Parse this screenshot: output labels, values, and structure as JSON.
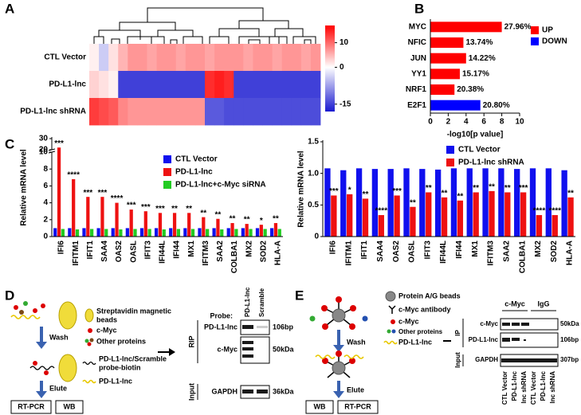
{
  "panel_labels": [
    "A",
    "B",
    "C",
    "D",
    "E"
  ],
  "chart_data": [
    {
      "type": "heatmap",
      "rows": [
        "CTL Vector",
        "PD-L1-lnc",
        "PD-L1-lnc shRNA"
      ],
      "values": [
        [
          1,
          -4,
          2,
          5,
          7,
          7,
          6,
          7,
          7,
          6,
          7,
          7,
          6,
          7,
          7,
          7,
          6,
          7,
          7,
          6,
          7,
          7,
          6,
          7
        ],
        [
          3,
          2,
          1,
          -15,
          -15,
          -15,
          -15,
          -15,
          -15,
          -15,
          -15,
          -15,
          14,
          15,
          14,
          -15,
          -15,
          -15,
          -15,
          -15,
          -15,
          -15,
          -15,
          -15
        ],
        [
          13,
          12,
          11,
          8,
          7,
          7,
          7,
          7,
          7,
          7,
          7,
          7,
          -13,
          -13,
          -14,
          -14,
          -14,
          -14,
          -14,
          -14,
          -14,
          -14,
          -14,
          -14
        ]
      ],
      "zlim": [
        -18,
        17
      ],
      "zticks": [
        10,
        0,
        -15
      ],
      "colors": [
        "#1a1ad0",
        "#ffffff",
        "#ff0000"
      ]
    },
    {
      "type": "bar",
      "orientation": "horizontal",
      "categories": [
        "MYC",
        "NFIC",
        "JUN",
        "YY1",
        "NRF1",
        "E2F1"
      ],
      "series": [
        {
          "name": "UP",
          "color": "#ff0000",
          "values": [
            8.0,
            3.7,
            4.0,
            3.3,
            2.7,
            null
          ]
        },
        {
          "name": "DOWN",
          "color": "#0000ff",
          "values": [
            null,
            null,
            null,
            null,
            null,
            5.6
          ]
        }
      ],
      "percent_labels": [
        "27.96%",
        "13.74%",
        "14.22%",
        "15.17%",
        "20.38%",
        "20.80%"
      ],
      "xlim": [
        0,
        10
      ],
      "xticks": [
        0,
        2,
        4,
        6,
        8,
        10
      ],
      "x_label": "-log10[p value]"
    },
    {
      "type": "bar",
      "orientation": "vertical",
      "categories": [
        "IFI6",
        "IFITM1",
        "IFIT1",
        "SAA4",
        "OAS2",
        "OASL",
        "IFIT3",
        "IFI44L",
        "IFI44",
        "MX1",
        "IFITM3",
        "SAA2",
        "COLBA1",
        "MX2",
        "SOD2",
        "HLA-A"
      ],
      "series": [
        {
          "name": "CTL Vector",
          "color": "#1010ee",
          "values": [
            1,
            1,
            1,
            1,
            1,
            1,
            1,
            1,
            1,
            1,
            1,
            1,
            1,
            1,
            1,
            1
          ]
        },
        {
          "name": "PD-L1-lnc",
          "color": "#ee1111",
          "values": [
            22,
            6.8,
            4.7,
            4.7,
            4.0,
            3.2,
            3.0,
            2.8,
            2.8,
            2.8,
            2.3,
            2.1,
            1.6,
            1.5,
            1.4,
            1.6
          ],
          "significance": [
            "***",
            "****",
            "***",
            "***",
            "****",
            "***",
            "***",
            "***",
            "**",
            "**",
            "**",
            "**",
            "**",
            "**",
            "*",
            "**"
          ]
        },
        {
          "name": "PD-L1-lnc+c-Myc siRNA",
          "color": "#22cc22",
          "values": [
            0.9,
            0.85,
            0.9,
            0.9,
            0.85,
            0.9,
            0.9,
            0.85,
            0.9,
            0.9,
            0.9,
            0.85,
            0.9,
            0.9,
            0.9,
            0.9
          ]
        }
      ],
      "ylim": [
        0,
        30
      ],
      "ybreak": [
        10,
        20
      ],
      "yticks": [
        0,
        2,
        4,
        6,
        8,
        10,
        20,
        30
      ],
      "y_label": "Relative mRNA level"
    },
    {
      "type": "bar",
      "orientation": "vertical",
      "categories": [
        "IFI6",
        "IFITM1",
        "IFIT1",
        "SAA4",
        "OAS2",
        "OASL",
        "IFIT3",
        "IFI44L",
        "IFI44",
        "MX1",
        "IFITM3",
        "SAA2",
        "COLBA1",
        "MX2",
        "SOD2",
        "HLA-A"
      ],
      "series": [
        {
          "name": "CTL Vector",
          "color": "#1010ee",
          "values": [
            1.08,
            1.05,
            1.08,
            1.07,
            1.07,
            1.08,
            1.07,
            1.06,
            1.08,
            1.08,
            1.08,
            1.08,
            1.07,
            1.08,
            1.08,
            1.05
          ]
        },
        {
          "name": "PD-L1-lnc shRNA",
          "color": "#ee1111",
          "values": [
            0.65,
            0.67,
            0.6,
            0.34,
            0.65,
            0.47,
            0.7,
            0.62,
            0.57,
            0.7,
            0.72,
            0.7,
            0.7,
            0.34,
            0.34,
            0.62
          ],
          "significance": [
            "***",
            "*",
            "**",
            "****",
            "***",
            "**",
            "**",
            "**",
            "**",
            "**",
            "**",
            "**",
            "***",
            "****",
            "****",
            "**"
          ]
        }
      ],
      "ylim": [
        0,
        1.5
      ],
      "yticks": [
        0,
        0.5,
        {
          "value": 1,
          "label": "1.0"
        },
        1.5
      ],
      "y_label": "Relative mRNA level"
    }
  ],
  "panel_d": {
    "legend": [
      [
        "Streptavidin magnetic",
        "beads"
      ],
      [
        "c-Myc"
      ],
      [
        "Other proteins"
      ],
      [
        "PD-L1-lnc/Scramble",
        "probe-biotin"
      ],
      [
        "PD-L1-lnc"
      ]
    ],
    "steps": [
      "Wash",
      "Elute"
    ],
    "outputs": [
      "RT-PCR",
      "WB"
    ],
    "gel": {
      "probe_label": "Probe:",
      "lanes": [
        "PD-L1-lnc",
        "Scramble"
      ],
      "rows": [
        "PD-L1-lnc",
        "c-Myc",
        "GAPDH"
      ],
      "sizes": [
        "106bp",
        "50kDa",
        "36kDa"
      ],
      "groups": [
        "RIP",
        "Input"
      ]
    }
  },
  "panel_e": {
    "legend": [
      "Protein A/G beads",
      "c-Myc antibody",
      "c-Myc",
      "Other proteins",
      "PD-L1-lnc"
    ],
    "steps": [
      "Wash",
      "Elute"
    ],
    "outputs": [
      "WB",
      "RT-PCR"
    ],
    "gel": {
      "groups_top": [
        "c-Myc",
        "IgG"
      ],
      "rows": [
        "c-Myc",
        "PD-L1-lnc",
        "GAPDH"
      ],
      "sizes": [
        "50kDa",
        "106bp",
        "307bp"
      ],
      "groups": [
        "IP",
        "Input"
      ],
      "lanes": [
        "CTL Vector",
        "PD-L1-lnc",
        "lnc shRNA",
        "CTL Vector",
        "PD-L1-lnc",
        "lnc shRNA"
      ]
    }
  }
}
